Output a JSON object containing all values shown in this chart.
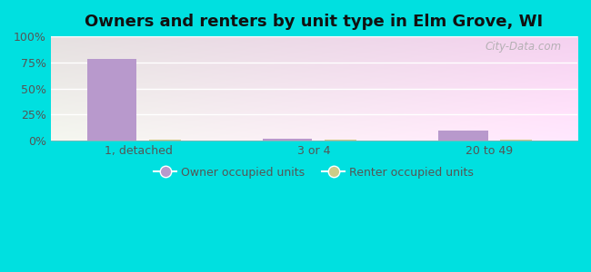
{
  "title": "Owners and renters by unit type in Elm Grove, WI",
  "categories": [
    "1, detached",
    "3 or 4",
    "20 to 49"
  ],
  "owner_values": [
    78,
    2,
    10
  ],
  "renter_values": [
    1,
    1,
    1
  ],
  "owner_color": "#b899cc",
  "renter_color": "#cccc88",
  "background_outer": "#00e0e0",
  "ylim": [
    0,
    100
  ],
  "yticks": [
    0,
    25,
    50,
    75,
    100
  ],
  "ytick_labels": [
    "0%",
    "25%",
    "50%",
    "75%",
    "100%"
  ],
  "legend_owner": "Owner occupied units",
  "legend_renter": "Renter occupied units",
  "title_fontsize": 13,
  "owner_bar_width": 0.28,
  "renter_bar_width": 0.18,
  "watermark": "City-Data.com"
}
